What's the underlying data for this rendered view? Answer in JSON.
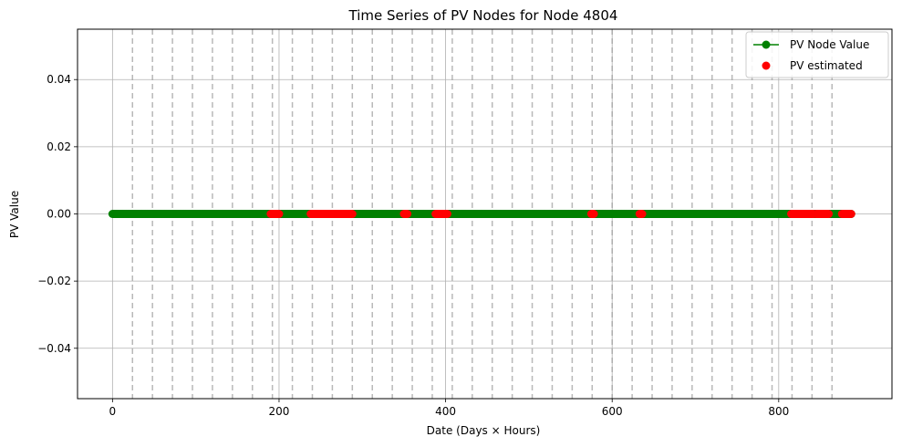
{
  "chart_data": {
    "type": "scatter",
    "title": "Time Series of PV Nodes for Node 4804",
    "xlabel": "Date (Days × Hours)",
    "ylabel": "PV Value",
    "xlim": [
      -42,
      936
    ],
    "ylim": [
      -0.055,
      0.055
    ],
    "x_ticks": [
      0,
      200,
      400,
      600,
      800
    ],
    "y_ticks": [
      -0.04,
      -0.02,
      0.0,
      0.02,
      0.04
    ],
    "y_tick_labels": [
      "−0.04",
      "−0.02",
      "0.00",
      "0.02",
      "0.04"
    ],
    "grid": true,
    "legend_position": "top-right",
    "day_boundaries": [
      24,
      48,
      72,
      96,
      120,
      144,
      168,
      192,
      216,
      240,
      264,
      288,
      312,
      336,
      360,
      384,
      408,
      432,
      456,
      480,
      504,
      528,
      552,
      576,
      600,
      624,
      648,
      672,
      696,
      720,
      744,
      768,
      792,
      816,
      840,
      864
    ],
    "series": [
      {
        "name": "PV Node Value",
        "color": "#008000",
        "style": "line-with-markers",
        "x_range": [
          0,
          887
        ],
        "y_value": 0
      },
      {
        "name": "PV estimated",
        "color": "#ff0000",
        "style": "markers",
        "x_segments": [
          [
            190,
            200
          ],
          [
            238,
            288
          ],
          [
            350,
            354
          ],
          [
            388,
            402
          ],
          [
            575,
            578
          ],
          [
            633,
            636
          ],
          [
            815,
            842
          ],
          [
            845,
            860
          ],
          [
            876,
            887
          ]
        ],
        "y_value": 0
      }
    ]
  }
}
